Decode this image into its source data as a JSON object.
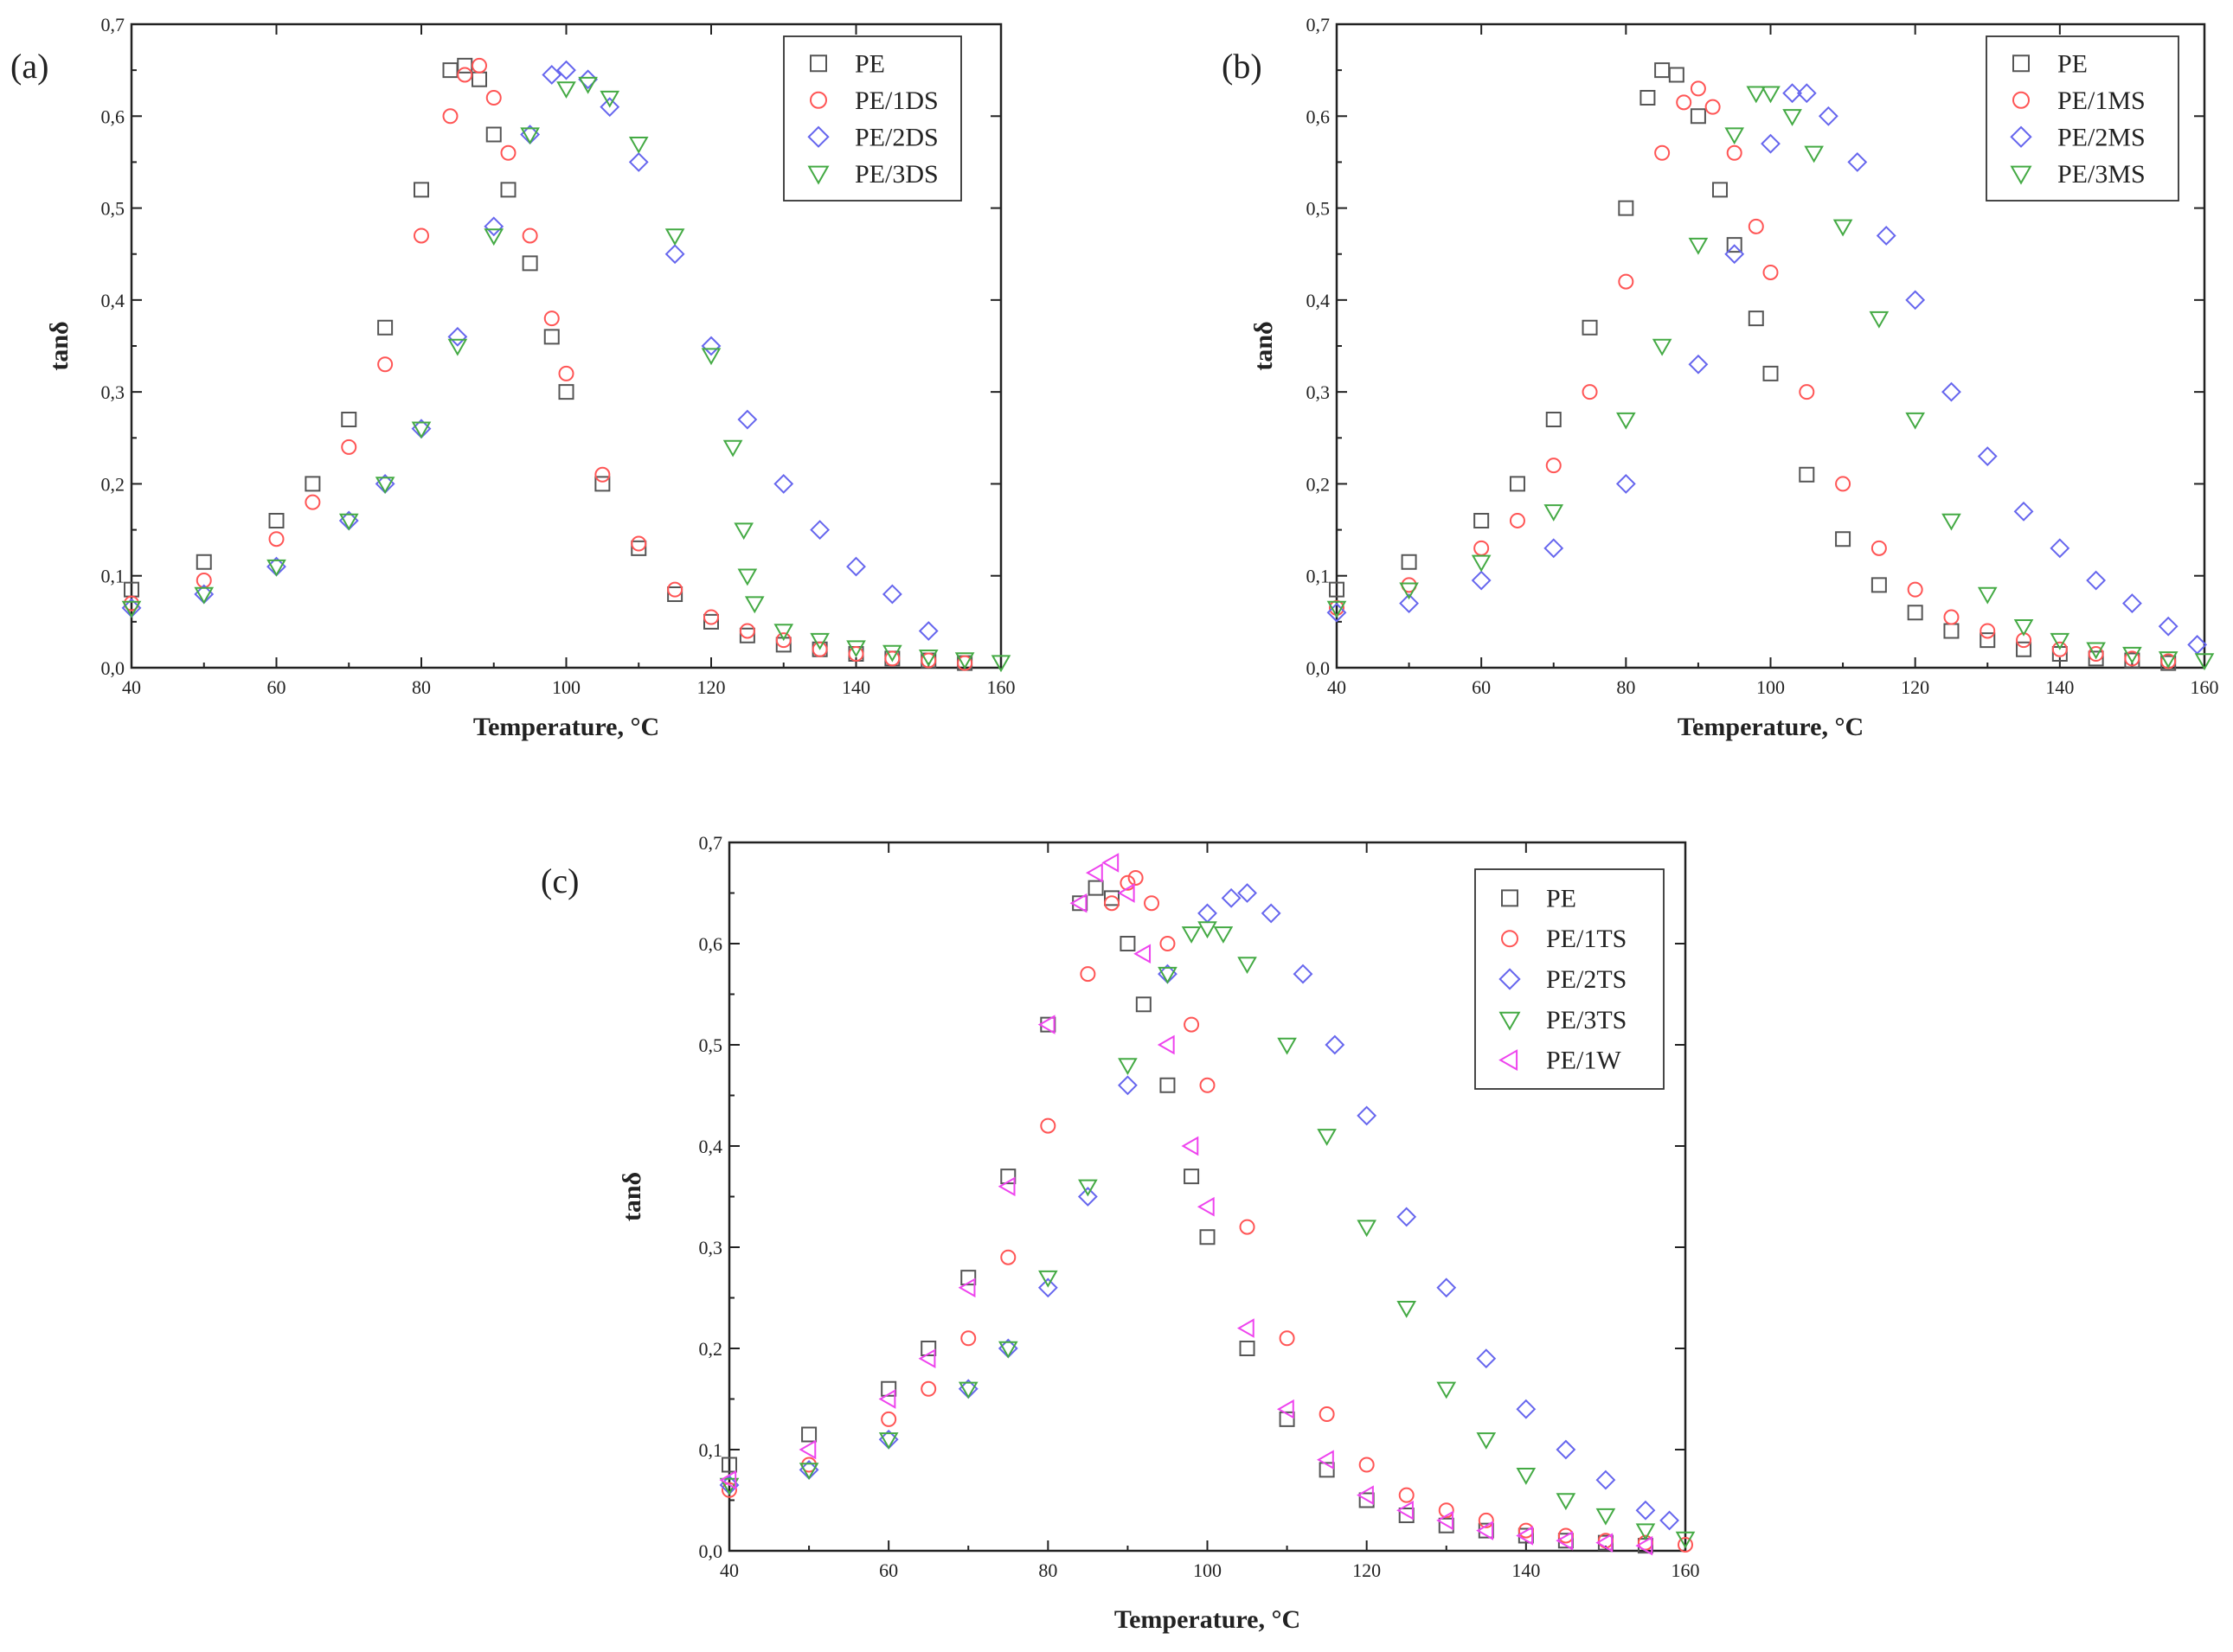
{
  "chart_data": [
    {
      "type": "scatter",
      "panel_label": "(a)",
      "xlabel": "Temperature, °C",
      "ylabel": "tanδ",
      "xlim": [
        40,
        160
      ],
      "ylim": [
        0,
        0.7
      ],
      "x_ticks": [
        40,
        60,
        80,
        100,
        120,
        140,
        160
      ],
      "y_ticks": [
        0,
        0.1,
        0.2,
        0.3,
        0.4,
        0.5,
        0.6,
        0.7
      ],
      "x_tick_labels": [
        "40",
        "60",
        "80",
        "100",
        "120",
        "140",
        "160"
      ],
      "y_tick_labels": [
        "0,0",
        "0,1",
        "0,2",
        "0,3",
        "0,4",
        "0,5",
        "0,6",
        "0,7"
      ],
      "legend_position": "top-right",
      "grid": false,
      "series": [
        {
          "name": "PE",
          "color": "#555555",
          "marker": "square",
          "x": [
            40,
            50,
            60,
            65,
            70,
            75,
            80,
            84,
            86,
            88,
            90,
            92,
            95,
            98,
            100,
            105,
            110,
            115,
            120,
            125,
            130,
            135,
            140,
            145,
            150,
            155
          ],
          "y": [
            0.085,
            0.115,
            0.16,
            0.2,
            0.27,
            0.37,
            0.52,
            0.65,
            0.655,
            0.64,
            0.58,
            0.52,
            0.44,
            0.36,
            0.3,
            0.2,
            0.13,
            0.08,
            0.05,
            0.035,
            0.025,
            0.02,
            0.015,
            0.01,
            0.008,
            0.005
          ]
        },
        {
          "name": "PE/1DS",
          "color": "#ff5555",
          "marker": "circle",
          "x": [
            40,
            50,
            60,
            65,
            70,
            75,
            80,
            84,
            86,
            88,
            90,
            92,
            95,
            98,
            100,
            105,
            110,
            115,
            120,
            125,
            130,
            135,
            140,
            145,
            150,
            155
          ],
          "y": [
            0.07,
            0.095,
            0.14,
            0.18,
            0.24,
            0.33,
            0.47,
            0.6,
            0.645,
            0.655,
            0.62,
            0.56,
            0.47,
            0.38,
            0.32,
            0.21,
            0.135,
            0.085,
            0.055,
            0.04,
            0.03,
            0.02,
            0.015,
            0.01,
            0.008,
            0.005
          ]
        },
        {
          "name": "PE/2DS",
          "color": "#6666ee",
          "marker": "diamond",
          "x": [
            40,
            50,
            60,
            70,
            75,
            80,
            85,
            90,
            95,
            98,
            100,
            103,
            106,
            110,
            115,
            120,
            125,
            130,
            135,
            140,
            145,
            150
          ],
          "y": [
            0.065,
            0.08,
            0.11,
            0.16,
            0.2,
            0.26,
            0.36,
            0.48,
            0.58,
            0.645,
            0.65,
            0.64,
            0.61,
            0.55,
            0.45,
            0.35,
            0.27,
            0.2,
            0.15,
            0.11,
            0.08,
            0.04
          ]
        },
        {
          "name": "PE/3DS",
          "color": "#44aa44",
          "marker": "triangle-down",
          "x": [
            40,
            50,
            60,
            70,
            75,
            80,
            85,
            90,
            95,
            100,
            103,
            106,
            110,
            115,
            120,
            123,
            124.5,
            125,
            126,
            130,
            135,
            140,
            145,
            150,
            155,
            160
          ],
          "y": [
            0.065,
            0.08,
            0.11,
            0.16,
            0.2,
            0.26,
            0.35,
            0.47,
            0.58,
            0.63,
            0.635,
            0.62,
            0.57,
            0.47,
            0.34,
            0.24,
            0.15,
            0.1,
            0.07,
            0.04,
            0.03,
            0.022,
            0.017,
            0.012,
            0.009,
            0.006
          ]
        }
      ]
    },
    {
      "type": "scatter",
      "panel_label": "(b)",
      "xlabel": "Temperature, °C",
      "ylabel": "tanδ",
      "xlim": [
        40,
        160
      ],
      "ylim": [
        0,
        0.7
      ],
      "x_ticks": [
        40,
        60,
        80,
        100,
        120,
        140,
        160
      ],
      "y_ticks": [
        0,
        0.1,
        0.2,
        0.3,
        0.4,
        0.5,
        0.6,
        0.7
      ],
      "x_tick_labels": [
        "40",
        "60",
        "80",
        "100",
        "120",
        "140",
        "160"
      ],
      "y_tick_labels": [
        "0,0",
        "0,1",
        "0,2",
        "0,3",
        "0,4",
        "0,5",
        "0,6",
        "0,7"
      ],
      "legend_position": "top-right",
      "grid": false,
      "series": [
        {
          "name": "PE",
          "color": "#555555",
          "marker": "square",
          "x": [
            40,
            50,
            60,
            65,
            70,
            75,
            80,
            83,
            85,
            87,
            90,
            93,
            95,
            98,
            100,
            105,
            110,
            115,
            120,
            125,
            130,
            135,
            140,
            145,
            150,
            155
          ],
          "y": [
            0.085,
            0.115,
            0.16,
            0.2,
            0.27,
            0.37,
            0.5,
            0.62,
            0.65,
            0.645,
            0.6,
            0.52,
            0.46,
            0.38,
            0.32,
            0.21,
            0.14,
            0.09,
            0.06,
            0.04,
            0.03,
            0.02,
            0.015,
            0.01,
            0.008,
            0.005
          ]
        },
        {
          "name": "PE/1MS",
          "color": "#ff5555",
          "marker": "circle",
          "x": [
            40,
            50,
            60,
            65,
            70,
            75,
            80,
            85,
            88,
            90,
            92,
            95,
            98,
            100,
            105,
            110,
            115,
            120,
            125,
            130,
            135,
            140,
            145,
            150,
            155
          ],
          "y": [
            0.065,
            0.09,
            0.13,
            0.16,
            0.22,
            0.3,
            0.42,
            0.56,
            0.615,
            0.63,
            0.61,
            0.56,
            0.48,
            0.43,
            0.3,
            0.2,
            0.13,
            0.085,
            0.055,
            0.04,
            0.03,
            0.02,
            0.015,
            0.01,
            0.007
          ]
        },
        {
          "name": "PE/2MS",
          "color": "#6666ee",
          "marker": "diamond",
          "x": [
            40,
            50,
            60,
            70,
            80,
            90,
            95,
            100,
            103,
            105,
            108,
            112,
            116,
            120,
            125,
            130,
            135,
            140,
            145,
            150,
            155,
            159
          ],
          "y": [
            0.06,
            0.07,
            0.095,
            0.13,
            0.2,
            0.33,
            0.45,
            0.57,
            0.625,
            0.625,
            0.6,
            0.55,
            0.47,
            0.4,
            0.3,
            0.23,
            0.17,
            0.13,
            0.095,
            0.07,
            0.045,
            0.025
          ]
        },
        {
          "name": "PE/3MS",
          "color": "#44aa44",
          "marker": "triangle-down",
          "x": [
            40,
            50,
            60,
            70,
            80,
            85,
            90,
            95,
            98,
            100,
            103,
            106,
            110,
            115,
            120,
            125,
            130,
            135,
            140,
            145,
            150,
            155,
            160
          ],
          "y": [
            0.065,
            0.085,
            0.115,
            0.17,
            0.27,
            0.35,
            0.46,
            0.58,
            0.625,
            0.625,
            0.6,
            0.56,
            0.48,
            0.38,
            0.27,
            0.16,
            0.08,
            0.045,
            0.03,
            0.02,
            0.015,
            0.01,
            0.008
          ]
        }
      ]
    },
    {
      "type": "scatter",
      "panel_label": "(c)",
      "xlabel": "Temperature, °C",
      "ylabel": "tanδ",
      "xlim": [
        40,
        160
      ],
      "ylim": [
        0,
        0.7
      ],
      "x_ticks": [
        40,
        60,
        80,
        100,
        120,
        140,
        160
      ],
      "y_ticks": [
        0,
        0.1,
        0.2,
        0.3,
        0.4,
        0.5,
        0.6,
        0.7
      ],
      "x_tick_labels": [
        "40",
        "60",
        "80",
        "100",
        "120",
        "140",
        "160"
      ],
      "y_tick_labels": [
        "0,0",
        "0,1",
        "0,2",
        "0,3",
        "0,4",
        "0,5",
        "0,6",
        "0,7"
      ],
      "legend_position": "top-right",
      "grid": false,
      "series": [
        {
          "name": "PE",
          "color": "#555555",
          "marker": "square",
          "x": [
            40,
            50,
            60,
            65,
            70,
            75,
            80,
            84,
            86,
            88,
            90,
            92,
            95,
            98,
            100,
            105,
            110,
            115,
            120,
            125,
            130,
            135,
            140,
            145,
            150,
            155
          ],
          "y": [
            0.085,
            0.115,
            0.16,
            0.2,
            0.27,
            0.37,
            0.52,
            0.64,
            0.655,
            0.645,
            0.6,
            0.54,
            0.46,
            0.37,
            0.31,
            0.2,
            0.13,
            0.08,
            0.05,
            0.035,
            0.025,
            0.02,
            0.015,
            0.01,
            0.008,
            0.005
          ]
        },
        {
          "name": "PE/1TS",
          "color": "#ff5555",
          "marker": "circle",
          "x": [
            40,
            50,
            60,
            65,
            70,
            75,
            80,
            85,
            88,
            90,
            91,
            93,
            95,
            98,
            100,
            105,
            110,
            115,
            120,
            125,
            130,
            135,
            140,
            145,
            150,
            155,
            160
          ],
          "y": [
            0.06,
            0.085,
            0.13,
            0.16,
            0.21,
            0.29,
            0.42,
            0.57,
            0.64,
            0.66,
            0.665,
            0.64,
            0.6,
            0.52,
            0.46,
            0.32,
            0.21,
            0.135,
            0.085,
            0.055,
            0.04,
            0.03,
            0.02,
            0.015,
            0.01,
            0.008,
            0.006
          ]
        },
        {
          "name": "PE/2TS",
          "color": "#6666ee",
          "marker": "diamond",
          "x": [
            40,
            50,
            60,
            70,
            75,
            80,
            85,
            90,
            95,
            100,
            103,
            105,
            108,
            112,
            116,
            120,
            125,
            130,
            135,
            140,
            145,
            150,
            155,
            158
          ],
          "y": [
            0.065,
            0.08,
            0.11,
            0.16,
            0.2,
            0.26,
            0.35,
            0.46,
            0.57,
            0.63,
            0.645,
            0.65,
            0.63,
            0.57,
            0.5,
            0.43,
            0.33,
            0.26,
            0.19,
            0.14,
            0.1,
            0.07,
            0.04,
            0.03
          ]
        },
        {
          "name": "PE/3TS",
          "color": "#44aa44",
          "marker": "triangle-down",
          "x": [
            40,
            50,
            60,
            70,
            75,
            80,
            85,
            90,
            95,
            98,
            100,
            102,
            105,
            110,
            115,
            120,
            125,
            130,
            135,
            140,
            145,
            150,
            155,
            160
          ],
          "y": [
            0.065,
            0.08,
            0.11,
            0.16,
            0.2,
            0.27,
            0.36,
            0.48,
            0.57,
            0.61,
            0.615,
            0.61,
            0.58,
            0.5,
            0.41,
            0.32,
            0.24,
            0.16,
            0.11,
            0.075,
            0.05,
            0.035,
            0.02,
            0.012
          ]
        },
        {
          "name": "PE/1W",
          "color": "#ee44ee",
          "marker": "triangle-left",
          "x": [
            40,
            50,
            60,
            65,
            70,
            75,
            80,
            84,
            86,
            88,
            90,
            92,
            95,
            98,
            100,
            105,
            110,
            115,
            120,
            125,
            130,
            135,
            140,
            145,
            150,
            155
          ],
          "y": [
            0.07,
            0.1,
            0.15,
            0.19,
            0.26,
            0.36,
            0.52,
            0.64,
            0.67,
            0.68,
            0.65,
            0.59,
            0.5,
            0.4,
            0.34,
            0.22,
            0.14,
            0.09,
            0.055,
            0.04,
            0.03,
            0.02,
            0.015,
            0.01,
            0.008,
            0.005
          ]
        }
      ]
    }
  ]
}
